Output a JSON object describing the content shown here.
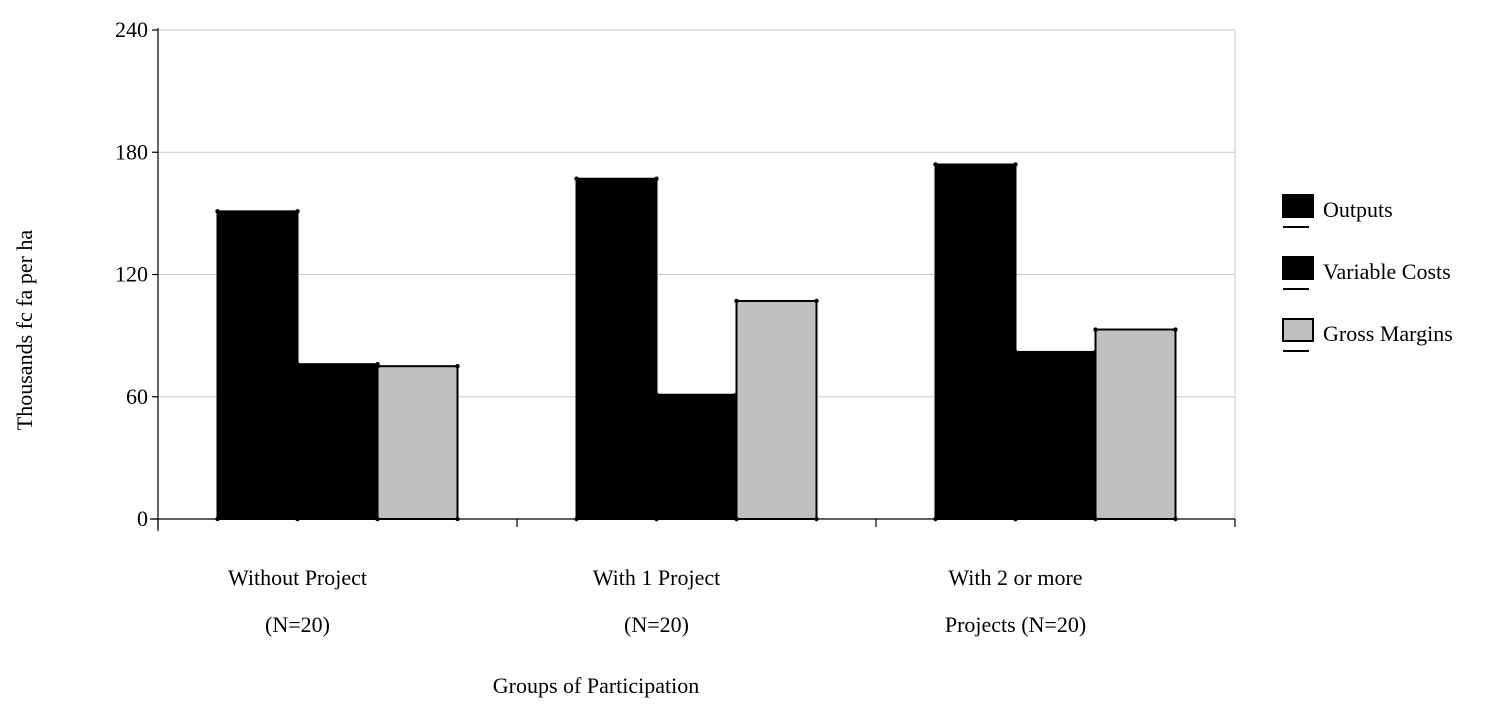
{
  "chart_data": {
    "type": "bar",
    "xlabel": "Groups of Participation",
    "ylabel": "Thousands fc    fa per ha",
    "ylim": [
      0,
      240
    ],
    "yticks": [
      0,
      60,
      120,
      180,
      240
    ],
    "grid": true,
    "legend_position": "right",
    "categories": [
      [
        "Without Project",
        "(N=20)"
      ],
      [
        "With 1 Project",
        "(N=20)"
      ],
      [
        "With 2 or more",
        "Projects (N=20)"
      ]
    ],
    "series": [
      {
        "name": "Outputs",
        "values": [
          151,
          167,
          174
        ],
        "color": "#000000"
      },
      {
        "name": "Variable Costs",
        "values": [
          76,
          61,
          82
        ],
        "color": "#000000"
      },
      {
        "name": "Gross Margins",
        "values": [
          75,
          107,
          93
        ],
        "color": "#c0c0c0"
      }
    ]
  }
}
